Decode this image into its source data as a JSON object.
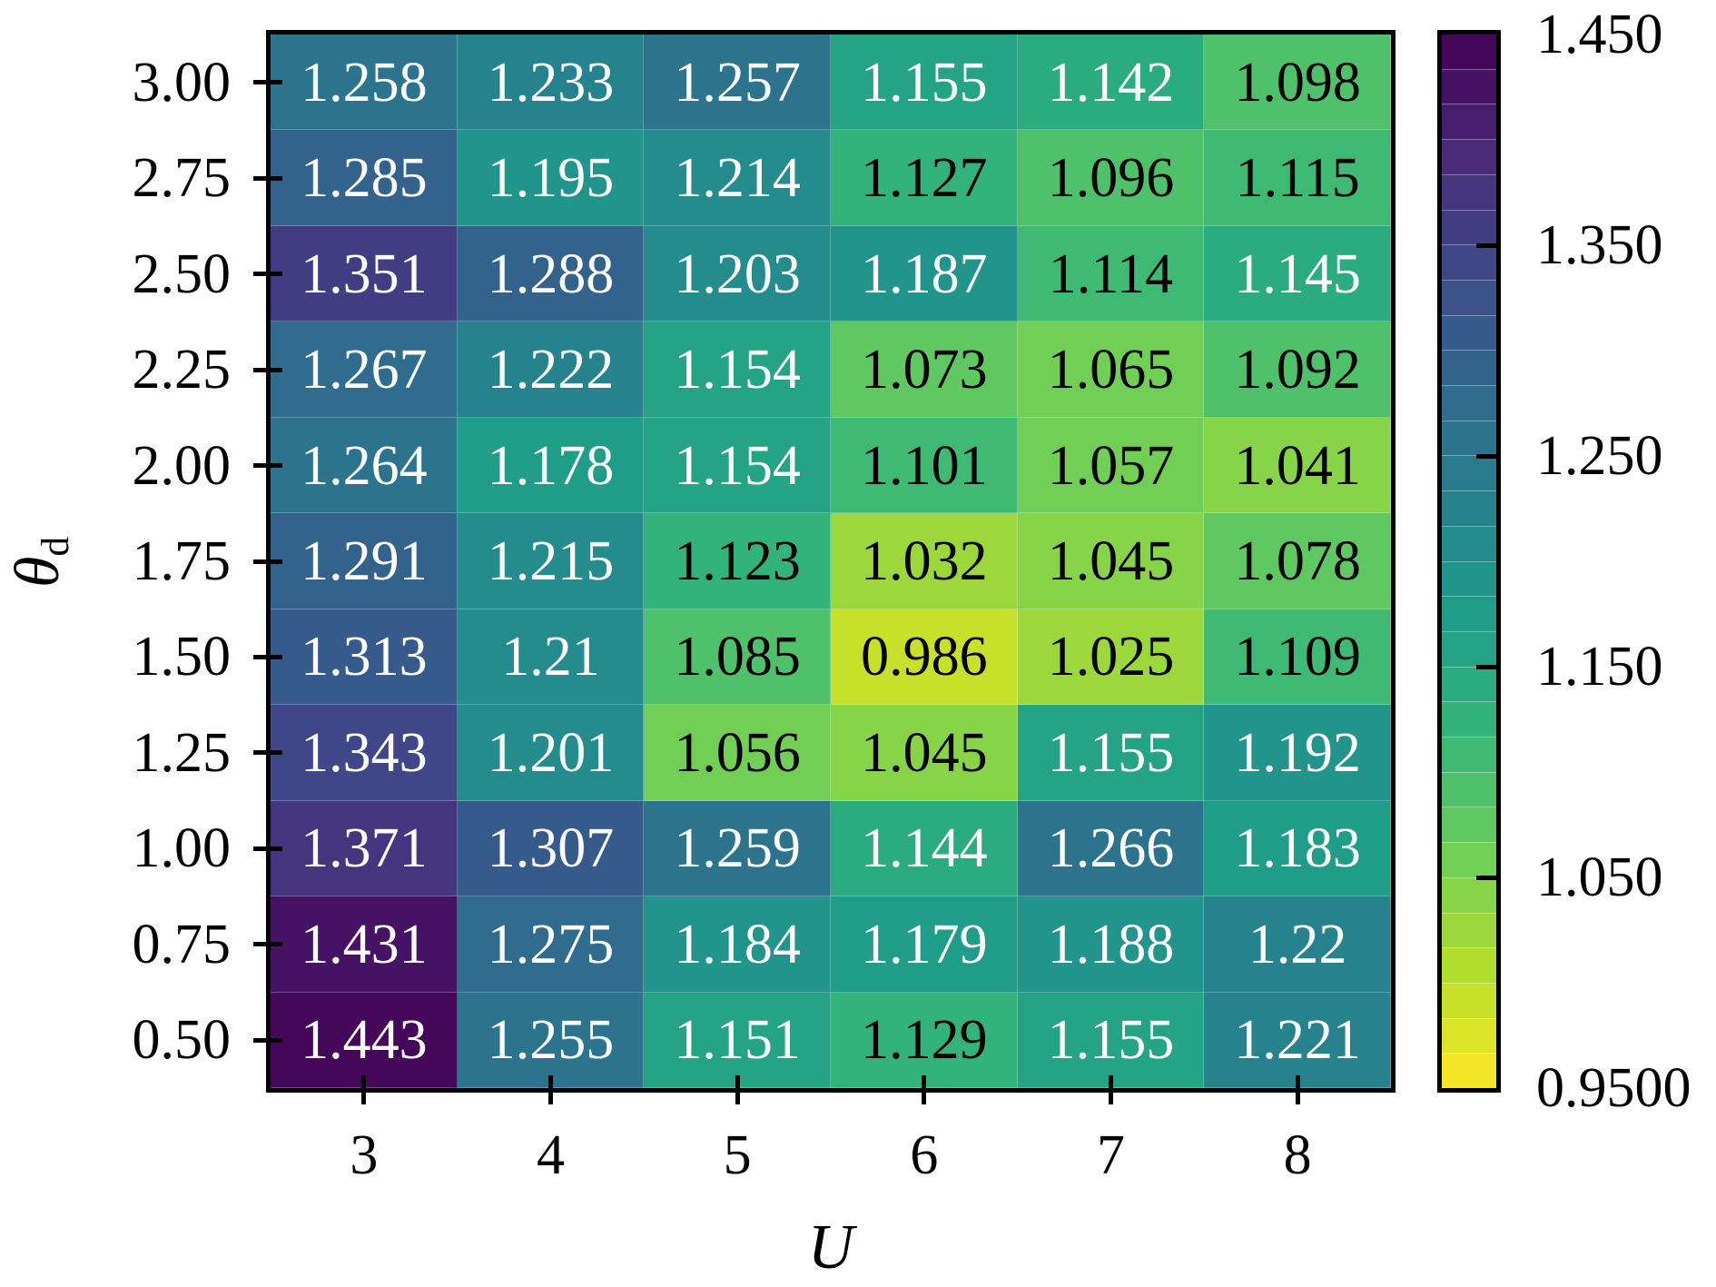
{
  "chart_data": {
    "type": "heatmap",
    "title": "",
    "xlabel": "U",
    "ylabel_main": "θ",
    "ylabel_sub": "d",
    "x_categories": [
      "3",
      "4",
      "5",
      "6",
      "7",
      "8"
    ],
    "y_categories": [
      "3.00",
      "2.75",
      "2.50",
      "2.25",
      "2.00",
      "1.75",
      "1.50",
      "1.25",
      "1.00",
      "0.75",
      "0.50"
    ],
    "values": [
      [
        1.258,
        1.233,
        1.257,
        1.155,
        1.142,
        1.098
      ],
      [
        1.285,
        1.195,
        1.214,
        1.127,
        1.096,
        1.115
      ],
      [
        1.351,
        1.288,
        1.203,
        1.187,
        1.114,
        1.145
      ],
      [
        1.267,
        1.222,
        1.154,
        1.073,
        1.065,
        1.092
      ],
      [
        1.264,
        1.178,
        1.154,
        1.101,
        1.057,
        1.041
      ],
      [
        1.291,
        1.215,
        1.123,
        1.032,
        1.045,
        1.078
      ],
      [
        1.313,
        1.21,
        1.085,
        0.986,
        1.025,
        1.109
      ],
      [
        1.343,
        1.201,
        1.056,
        1.045,
        1.155,
        1.192
      ],
      [
        1.371,
        1.307,
        1.259,
        1.144,
        1.266,
        1.183
      ],
      [
        1.431,
        1.275,
        1.184,
        1.179,
        1.188,
        1.22
      ],
      [
        1.443,
        1.255,
        1.151,
        1.129,
        1.155,
        1.221
      ]
    ],
    "vmin": 0.95,
    "vmax": 1.45,
    "levels": 30,
    "colormap": "viridis_r",
    "colormap_anchors": [
      "#440154",
      "#482878",
      "#3e4989",
      "#31688e",
      "#26828e",
      "#1f9e89",
      "#35b779",
      "#6ece58",
      "#b5de2b",
      "#fde725"
    ],
    "annotation_dark_threshold": 1.135,
    "colorbar_tick_labels": [
      "1.450",
      "1.350",
      "1.250",
      "1.150",
      "1.050",
      "0.9500"
    ],
    "colorbar_tick_values": [
      1.45,
      1.35,
      1.25,
      1.15,
      1.05,
      0.95
    ],
    "colorbar_inner_tick_values": [
      1.35,
      1.25,
      1.15,
      1.05
    ],
    "colors": {
      "annotation_light": "#ffffff",
      "annotation_dark": "#000000",
      "axis": "#000000",
      "background": "#ffffff"
    }
  }
}
